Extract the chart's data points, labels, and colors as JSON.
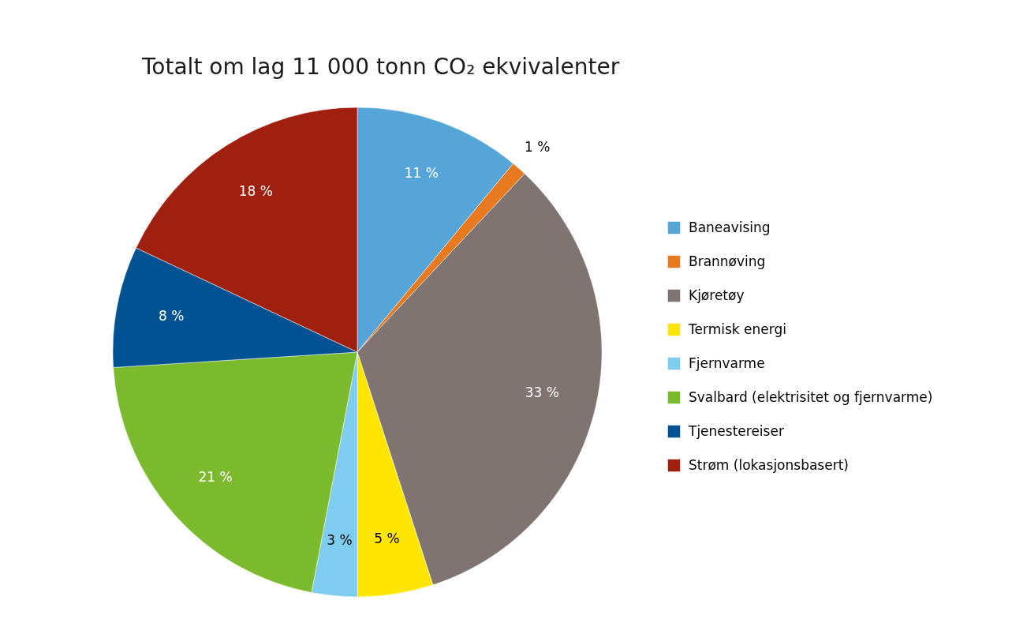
{
  "chart_data": {
    "type": "pie",
    "title": "Totalt om lag 11 000 tonn CO₂ ekvivalenter",
    "categories": [
      "Baneavising",
      "Brannøving",
      "Kjøretøy",
      "Termisk energi",
      "Fjernvarme",
      "Svalbard (elektrisitet og fjernvarme)",
      "Tjenestereiser",
      "Strøm (lokasjonsbasert)"
    ],
    "values": [
      11,
      1,
      33,
      5,
      3,
      21,
      8,
      18
    ],
    "colors": [
      "#56a5d8",
      "#e8791f",
      "#7f7471",
      "#ffe600",
      "#7ecdf1",
      "#7bb92d",
      "#005293",
      "#a0200f"
    ],
    "value_labels": [
      "11 %",
      "1 %",
      "33 %",
      "5 %",
      "3 %",
      "21 %",
      "8 %",
      "18 %"
    ],
    "legend": "right"
  }
}
